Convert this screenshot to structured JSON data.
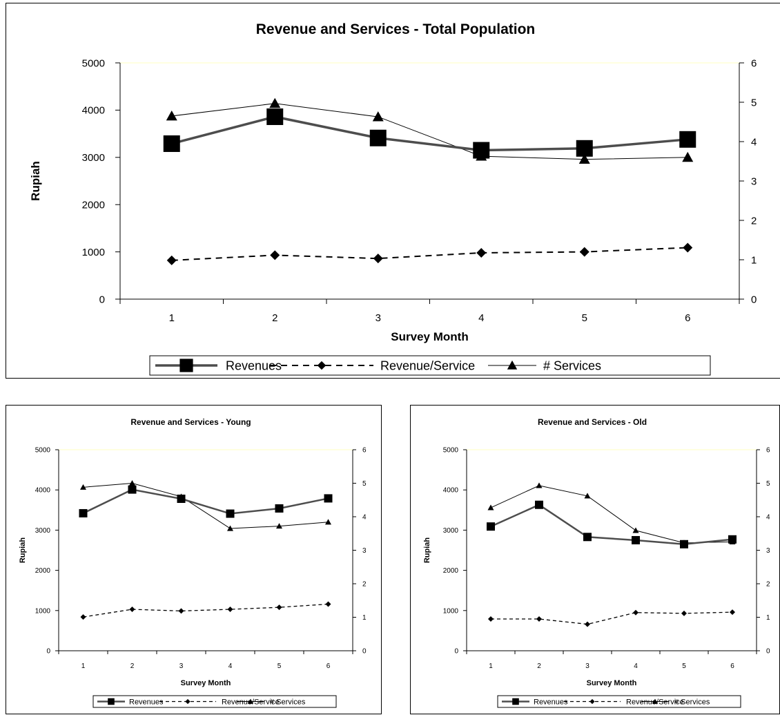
{
  "chart_data": [
    {
      "type": "line",
      "title": "Revenue and Services - Total Population",
      "xlabel": "Survey Month",
      "ylabel": "Rupiah",
      "categories": [
        "1",
        "2",
        "3",
        "4",
        "5",
        "6"
      ],
      "ylim": [
        0,
        5000
      ],
      "y_ticks": [
        "0",
        "1000",
        "2000",
        "3000",
        "4000",
        "5000"
      ],
      "y2lim": [
        0,
        6
      ],
      "y2_ticks": [
        "0",
        "1",
        "2",
        "3",
        "4",
        "5",
        "6"
      ],
      "grid": false,
      "legend_position": "bottom",
      "series": [
        {
          "name": "Revenues",
          "axis": "left",
          "values": [
            3290,
            3860,
            3410,
            3150,
            3190,
            3380
          ]
        },
        {
          "name": "Revenue/Service",
          "axis": "left",
          "values": [
            820,
            930,
            860,
            980,
            1000,
            1090
          ]
        },
        {
          "name": "# Services",
          "axis": "right",
          "values": [
            4.65,
            4.97,
            4.63,
            3.63,
            3.55,
            3.6
          ]
        }
      ]
    },
    {
      "type": "line",
      "title": "Revenue and Services - Young",
      "xlabel": "Survey Month",
      "ylabel": "Rupiah",
      "categories": [
        "1",
        "2",
        "3",
        "4",
        "5",
        "6"
      ],
      "ylim": [
        0,
        5000
      ],
      "y_ticks": [
        "0",
        "1000",
        "2000",
        "3000",
        "4000",
        "5000"
      ],
      "y2lim": [
        0,
        6
      ],
      "y2_ticks": [
        "0",
        "1",
        "2",
        "3",
        "4",
        "5",
        "6"
      ],
      "grid": false,
      "legend_position": "bottom",
      "series": [
        {
          "name": "Revenues",
          "axis": "left",
          "values": [
            3420,
            4010,
            3780,
            3410,
            3540,
            3790
          ]
        },
        {
          "name": "Revenue/Service",
          "axis": "left",
          "values": [
            840,
            1030,
            990,
            1030,
            1080,
            1160
          ]
        },
        {
          "name": "# Services",
          "axis": "right",
          "values": [
            4.88,
            5.0,
            4.6,
            3.65,
            3.72,
            3.84
          ]
        }
      ]
    },
    {
      "type": "line",
      "title": "Revenue and Services - Old",
      "xlabel": "Survey Month",
      "ylabel": "Rupiah",
      "categories": [
        "1",
        "2",
        "3",
        "4",
        "5",
        "6"
      ],
      "ylim": [
        0,
        5000
      ],
      "y_ticks": [
        "0",
        "1000",
        "2000",
        "3000",
        "4000",
        "5000"
      ],
      "y2lim": [
        0,
        6
      ],
      "y2_ticks": [
        "0",
        "1",
        "2",
        "3",
        "4",
        "5",
        "6"
      ],
      "grid": false,
      "legend_position": "bottom",
      "series": [
        {
          "name": "Revenues",
          "axis": "left",
          "values": [
            3090,
            3630,
            2830,
            2750,
            2650,
            2770
          ]
        },
        {
          "name": "Revenue/Service",
          "axis": "left",
          "values": [
            790,
            790,
            660,
            950,
            930,
            960
          ]
        },
        {
          "name": "# Services",
          "axis": "right",
          "values": [
            4.27,
            4.93,
            4.62,
            3.59,
            3.22,
            3.25
          ]
        }
      ]
    }
  ],
  "colors": {
    "revenues": "#4d4d4d",
    "revenue_per_service": "#000000",
    "services": "#000000",
    "axis": "#000000",
    "plot_top_border": "#ffffc0"
  },
  "icons": {
    "revenues": "square-marker-icon",
    "revenue_per_service": "diamond-marker-icon",
    "services": "triangle-marker-icon"
  }
}
